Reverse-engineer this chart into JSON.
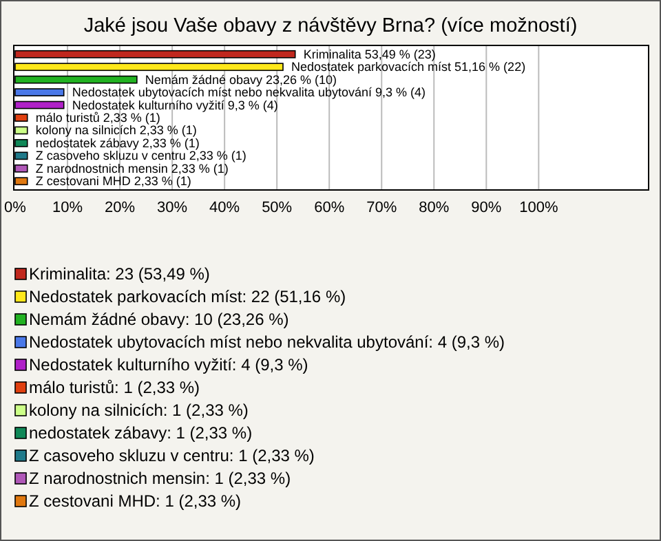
{
  "chart_data": {
    "type": "bar",
    "orientation": "horizontal",
    "title": "Jaké jsou Vaše obavy z návštěvy Brna? (více možností)",
    "categories": [
      null,
      null,
      null,
      null,
      null,
      null,
      null,
      null,
      null,
      null,
      null
    ],
    "values": [
      53.49,
      51.16,
      23.26,
      9.3,
      9.3,
      2.33,
      2.33,
      2.33,
      2.33,
      2.33,
      2.33
    ],
    "colors": [
      "#c0281e",
      "#ffe81a",
      "#22b222",
      "#4a78e8",
      "#b020c8",
      "#e04010",
      "#ccff88",
      "#108858",
      "#207a8a",
      "#b058b8",
      "#e07810"
    ],
    "value_labels": [
      "Kriminalita 53,49 % (23)",
      "Nedostatek parkovacích míst 51,16 % (22)",
      "Nemám žádné obavy 23,26 % (10)",
      "Nedostatek ubytovacích míst nebo nekvalita ubytování 9,3 % (4)",
      "Nedostatek kulturního vyžití 9,3 % (4)",
      "málo turistů 2,33 % (1)",
      "kolony na silnicích 2,33 % (1)",
      "nedostatek zábavy 2,33 % (1)",
      "Z casoveho skluzu v centru 2,33 % (1)",
      "Z narodnostnich mensin 2,33 % (1)",
      "Z cestovani MHD 2,33 % (1)"
    ],
    "annotations": [
      "Kriminalita: 23 (53,49 %)",
      "Nedostatek parkovacích míst: 22 (51,16 %)",
      "Nemám žádné obavy: 10 (23,26 %)",
      "Nedostatek ubytovacích míst nebo nekvalita ubytování: 4 (9,3 %)",
      "Nedostatek kulturního vyžití: 4 (9,3 %)",
      "málo turistů: 1 (2,33 %)",
      "kolony na silnicích: 1 (2,33 %)",
      "nedostatek zábavy: 1 (2,33 %)",
      "Z casoveho skluzu v centru: 1 (2,33 %)",
      "Z narodnostnich mensin: 1 (2,33 %)",
      "Z cestovani MHD: 1 (2,33 %)"
    ],
    "xlim": [
      0,
      121
    ],
    "xticks": [
      {
        "value": 0,
        "label": "0%"
      },
      {
        "value": 10,
        "label": "10%"
      },
      {
        "value": 20,
        "label": "20%"
      },
      {
        "value": 30,
        "label": "30%"
      },
      {
        "value": 40,
        "label": "40%"
      },
      {
        "value": 50,
        "label": "50%"
      },
      {
        "value": 60,
        "label": "60%"
      },
      {
        "value": 70,
        "label": "70%"
      },
      {
        "value": 80,
        "label": "80%"
      },
      {
        "value": 90,
        "label": "90%"
      },
      {
        "value": 100,
        "label": "100%"
      }
    ],
    "grid": "x"
  }
}
